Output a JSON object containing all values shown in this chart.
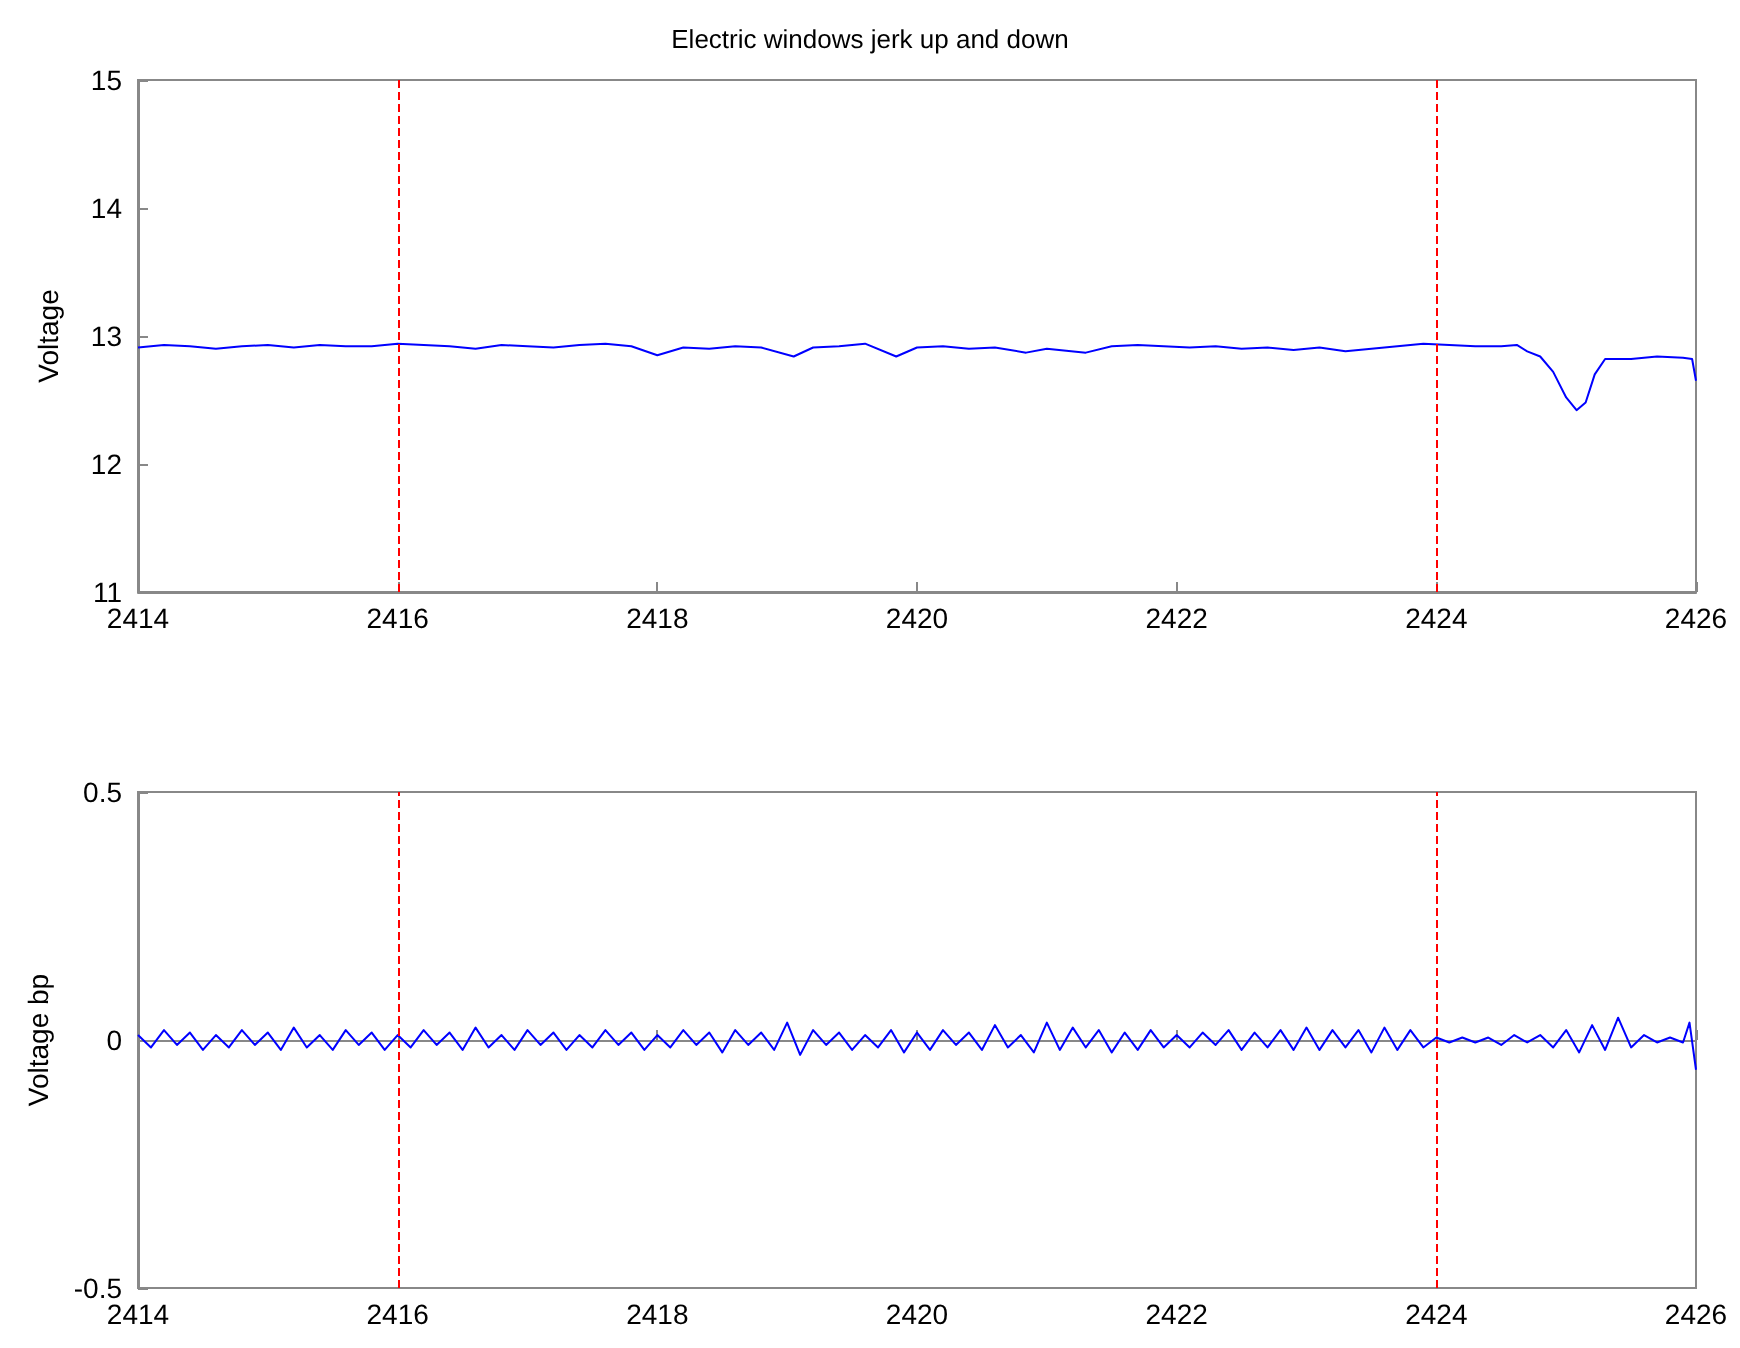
{
  "chart_data": [
    {
      "type": "line",
      "title": "Electric windows jerk up and down",
      "ylabel": "Voltage",
      "xlim": [
        2414,
        2426
      ],
      "xticks": [
        2414,
        2416,
        2418,
        2420,
        2422,
        2424,
        2426
      ],
      "ylim": [
        11,
        15
      ],
      "yticks": [
        11,
        12,
        13,
        14,
        15
      ],
      "grid": false,
      "marker": "none",
      "line_style": "solid",
      "ref_lines": [
        {
          "axis": "x",
          "value": 2416,
          "color": "#ff0000",
          "line_style": "dashed"
        },
        {
          "axis": "x",
          "value": 2424,
          "color": "#ff0000",
          "line_style": "dashed"
        }
      ],
      "x": [
        2414,
        2414.2,
        2414.4,
        2414.6,
        2414.8,
        2415,
        2415.2,
        2415.4,
        2415.6,
        2415.8,
        2416,
        2416.2,
        2416.4,
        2416.6,
        2416.8,
        2417,
        2417.2,
        2417.4,
        2417.6,
        2417.8,
        2418,
        2418.2,
        2418.4,
        2418.6,
        2418.8,
        2419.05,
        2419.2,
        2419.4,
        2419.6,
        2419.84,
        2420,
        2420.2,
        2420.4,
        2420.6,
        2420.84,
        2421,
        2421.3,
        2421.5,
        2421.7,
        2421.9,
        2422.1,
        2422.3,
        2422.5,
        2422.7,
        2422.9,
        2423.1,
        2423.3,
        2423.5,
        2423.7,
        2423.9,
        2424.1,
        2424.3,
        2424.5,
        2424.62,
        2424.7,
        2424.8,
        2424.9,
        2425,
        2425.08,
        2425.15,
        2425.22,
        2425.3,
        2425.5,
        2425.7,
        2425.9,
        2425.97,
        2426
      ],
      "series": [
        {
          "color": "#0000ff",
          "values": [
            12.91,
            12.93,
            12.92,
            12.9,
            12.92,
            12.93,
            12.91,
            12.93,
            12.92,
            12.92,
            12.94,
            12.93,
            12.92,
            12.9,
            12.93,
            12.92,
            12.91,
            12.93,
            12.94,
            12.92,
            12.85,
            12.91,
            12.9,
            12.92,
            12.91,
            12.84,
            12.91,
            12.92,
            12.94,
            12.84,
            12.91,
            12.92,
            12.9,
            12.91,
            12.87,
            12.9,
            12.87,
            12.92,
            12.93,
            12.92,
            12.91,
            12.92,
            12.9,
            12.91,
            12.89,
            12.91,
            12.88,
            12.9,
            12.92,
            12.94,
            12.93,
            12.92,
            12.92,
            12.93,
            12.88,
            12.84,
            12.72,
            12.52,
            12.42,
            12.48,
            12.7,
            12.82,
            12.82,
            12.84,
            12.83,
            12.82,
            12.65
          ]
        }
      ]
    },
    {
      "type": "line",
      "ylabel": "Voltage bp",
      "xlim": [
        2414,
        2426
      ],
      "xticks": [
        2414,
        2416,
        2418,
        2420,
        2422,
        2424,
        2426
      ],
      "ylim": [
        -0.5,
        0.5
      ],
      "yticks": [
        -0.5,
        0,
        0.5
      ],
      "grid": false,
      "marker": "none",
      "line_style": "solid",
      "ref_lines": [
        {
          "axis": "x",
          "value": 2416,
          "color": "#ff0000",
          "line_style": "dashed"
        },
        {
          "axis": "x",
          "value": 2424,
          "color": "#ff0000",
          "line_style": "dashed"
        }
      ],
      "x": [
        2414,
        2414.1,
        2414.2,
        2414.3,
        2414.4,
        2414.5,
        2414.6,
        2414.7,
        2414.8,
        2414.9,
        2415,
        2415.1,
        2415.2,
        2415.3,
        2415.4,
        2415.5,
        2415.6,
        2415.7,
        2415.8,
        2415.9,
        2416,
        2416.1,
        2416.2,
        2416.3,
        2416.4,
        2416.5,
        2416.6,
        2416.7,
        2416.8,
        2416.9,
        2417,
        2417.1,
        2417.2,
        2417.3,
        2417.4,
        2417.5,
        2417.6,
        2417.7,
        2417.8,
        2417.9,
        2418,
        2418.1,
        2418.2,
        2418.3,
        2418.4,
        2418.5,
        2418.6,
        2418.7,
        2418.8,
        2418.9,
        2419,
        2419.1,
        2419.2,
        2419.3,
        2419.4,
        2419.5,
        2419.6,
        2419.7,
        2419.8,
        2419.9,
        2420,
        2420.1,
        2420.2,
        2420.3,
        2420.4,
        2420.5,
        2420.6,
        2420.7,
        2420.8,
        2420.9,
        2421,
        2421.1,
        2421.2,
        2421.3,
        2421.4,
        2421.5,
        2421.6,
        2421.7,
        2421.8,
        2421.9,
        2422,
        2422.1,
        2422.2,
        2422.3,
        2422.4,
        2422.5,
        2422.6,
        2422.7,
        2422.8,
        2422.9,
        2423,
        2423.1,
        2423.2,
        2423.3,
        2423.4,
        2423.5,
        2423.6,
        2423.7,
        2423.8,
        2423.9,
        2424,
        2424.1,
        2424.2,
        2424.3,
        2424.4,
        2424.5,
        2424.6,
        2424.7,
        2424.8,
        2424.9,
        2425,
        2425.1,
        2425.2,
        2425.3,
        2425.4,
        2425.5,
        2425.6,
        2425.7,
        2425.8,
        2425.9,
        2425.95,
        2426
      ],
      "series": [
        {
          "color": "#0000ff",
          "values": [
            0.01,
            -0.015,
            0.02,
            -0.01,
            0.015,
            -0.02,
            0.01,
            -0.015,
            0.02,
            -0.01,
            0.015,
            -0.02,
            0.025,
            -0.015,
            0.01,
            -0.02,
            0.02,
            -0.01,
            0.015,
            -0.02,
            0.01,
            -0.015,
            0.02,
            -0.01,
            0.015,
            -0.02,
            0.025,
            -0.015,
            0.01,
            -0.02,
            0.02,
            -0.01,
            0.015,
            -0.02,
            0.01,
            -0.015,
            0.02,
            -0.01,
            0.015,
            -0.02,
            0.01,
            -0.015,
            0.02,
            -0.01,
            0.015,
            -0.025,
            0.02,
            -0.01,
            0.015,
            -0.02,
            0.035,
            -0.03,
            0.02,
            -0.01,
            0.015,
            -0.02,
            0.01,
            -0.015,
            0.02,
            -0.025,
            0.015,
            -0.02,
            0.02,
            -0.01,
            0.015,
            -0.02,
            0.03,
            -0.015,
            0.01,
            -0.025,
            0.035,
            -0.02,
            0.025,
            -0.015,
            0.02,
            -0.025,
            0.015,
            -0.02,
            0.02,
            -0.015,
            0.01,
            -0.015,
            0.015,
            -0.01,
            0.02,
            -0.02,
            0.015,
            -0.015,
            0.02,
            -0.02,
            0.025,
            -0.02,
            0.02,
            -0.015,
            0.02,
            -0.025,
            0.025,
            -0.02,
            0.02,
            -0.015,
            0.005,
            -0.005,
            0.005,
            -0.005,
            0.005,
            -0.01,
            0.01,
            -0.005,
            0.01,
            -0.015,
            0.02,
            -0.025,
            0.03,
            -0.02,
            0.045,
            -0.015,
            0.01,
            -0.005,
            0.005,
            -0.005,
            0.035,
            -0.06
          ]
        }
      ]
    }
  ]
}
